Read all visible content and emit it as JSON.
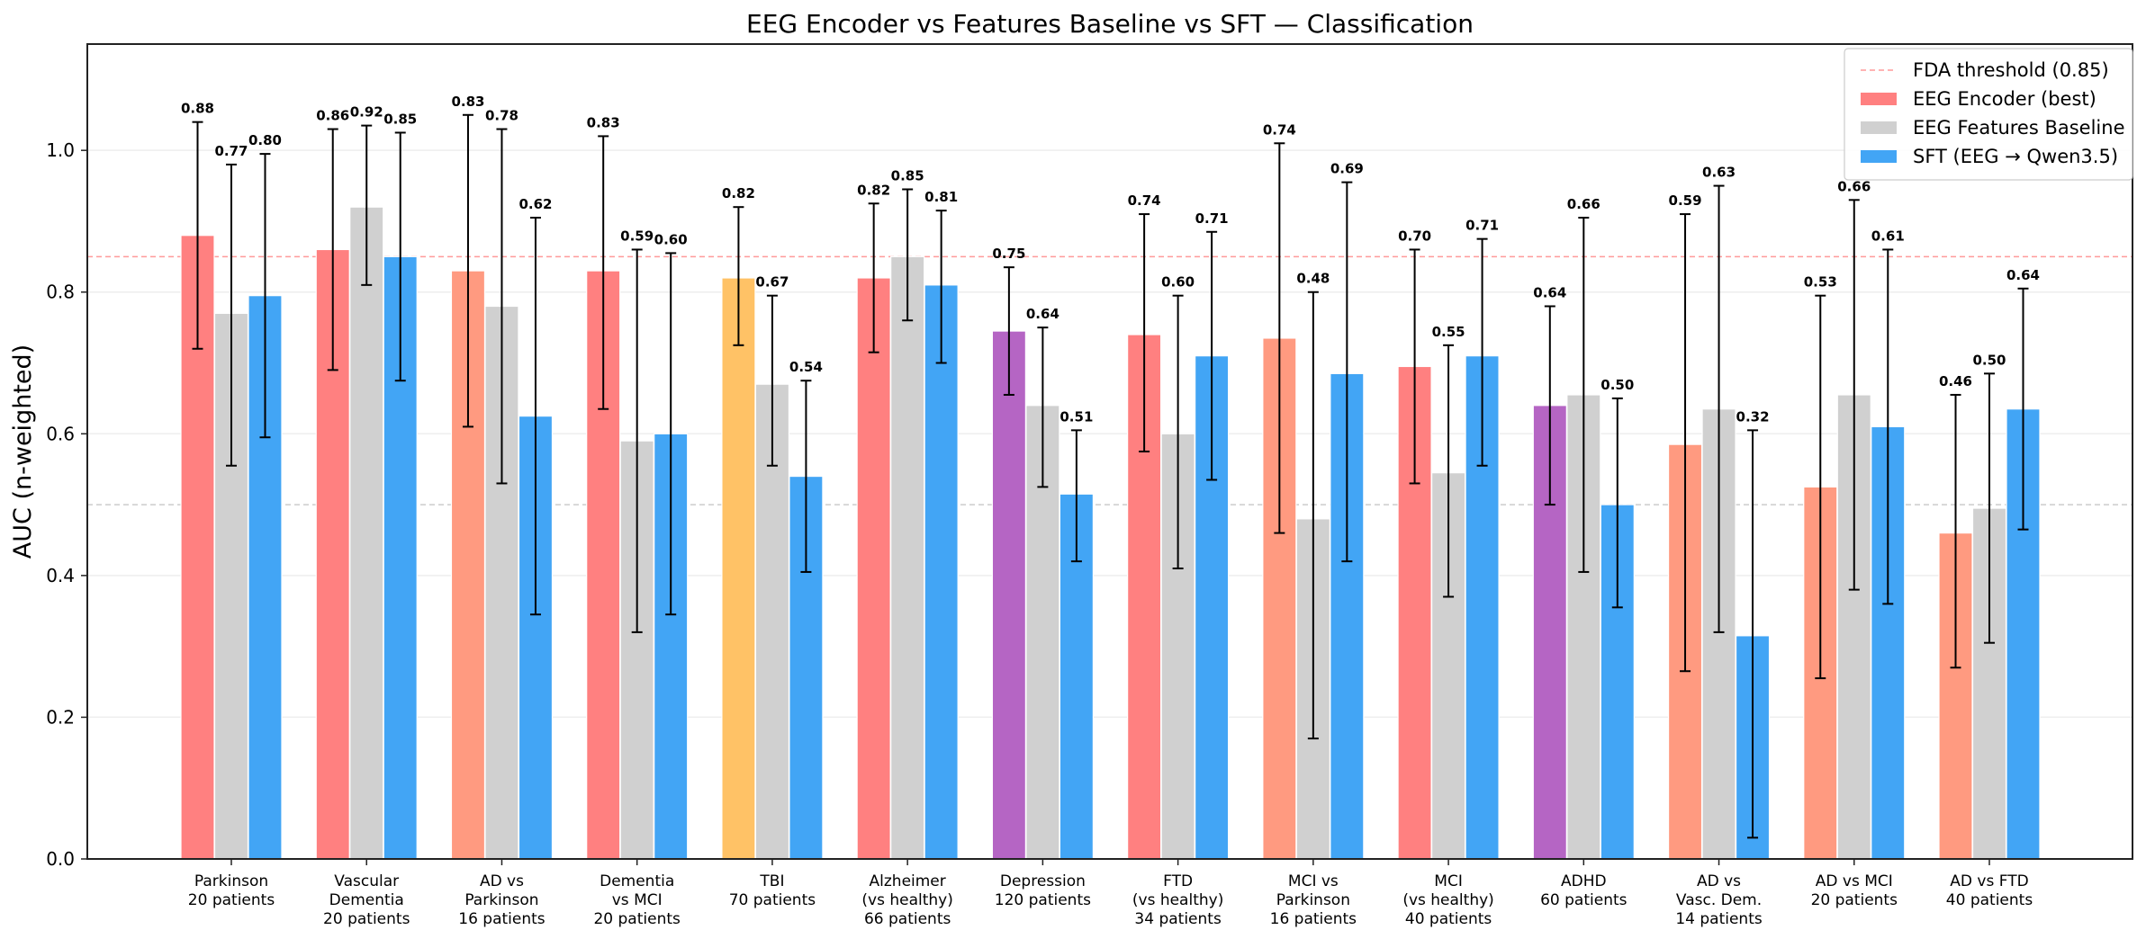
{
  "chart_data": {
    "type": "bar",
    "title": "EEG Encoder vs Features Baseline vs SFT — Classification",
    "xlabel": "",
    "ylabel": "AUC (n-weighted)",
    "ylim": [
      0.0,
      1.15
    ],
    "yticks": [
      "0.0",
      "0.2",
      "0.4",
      "0.6",
      "0.8",
      "1.0"
    ],
    "ytick_values": [
      0.0,
      0.2,
      0.4,
      0.6,
      0.8,
      1.0
    ],
    "grid": "y",
    "legend_position": "top-right",
    "reference_lines": [
      {
        "name": "FDA threshold (0.85)",
        "value": 0.85,
        "style": "dashed",
        "color": "#ff9a9a",
        "in_legend": true
      },
      {
        "name": "chance",
        "value": 0.5,
        "style": "dashed",
        "color": "#cccccc",
        "in_legend": false
      }
    ],
    "categories": [
      [
        "Parkinson",
        "20 patients"
      ],
      [
        "Vascular",
        "Dementia",
        "20 patients"
      ],
      [
        "AD vs",
        "Parkinson",
        "16 patients"
      ],
      [
        "Dementia",
        "vs MCI",
        "20 patients"
      ],
      [
        "TBI",
        "70 patients"
      ],
      [
        "Alzheimer",
        "(vs healthy)",
        "66 patients"
      ],
      [
        "Depression",
        "120 patients"
      ],
      [
        "FTD",
        "(vs healthy)",
        "34 patients"
      ],
      [
        "MCI vs",
        "Parkinson",
        "16 patients"
      ],
      [
        "MCI",
        "(vs healthy)",
        "40 patients"
      ],
      [
        "ADHD",
        "60 patients"
      ],
      [
        "AD vs",
        "Vasc. Dem.",
        "14 patients"
      ],
      [
        "AD vs MCI",
        "20 patients"
      ],
      [
        "AD vs FTD",
        "40 patients"
      ]
    ],
    "encoder_bar_colors": [
      "#ff8080",
      "#ff8080",
      "#ff9a80",
      "#ff8080",
      "#ffc266",
      "#ff8080",
      "#b565c4",
      "#ff8080",
      "#ff9a80",
      "#ff8080",
      "#b565c4",
      "#ff9a80",
      "#ff9a80",
      "#ff9a80"
    ],
    "series": [
      {
        "name": "EEG Encoder (best)",
        "color": "#ff8080",
        "values": [
          0.88,
          0.86,
          0.83,
          0.83,
          0.82,
          0.82,
          0.745,
          0.74,
          0.735,
          0.695,
          0.64,
          0.585,
          0.525,
          0.46
        ],
        "labels": [
          "0.88",
          "0.86",
          "0.83",
          "0.83",
          "0.82",
          "0.82",
          "0.75",
          "0.74",
          "0.74",
          "0.70",
          "0.64",
          "0.59",
          "0.53",
          "0.46"
        ],
        "ci_low": [
          0.72,
          0.69,
          0.61,
          0.635,
          0.725,
          0.715,
          0.655,
          0.575,
          0.46,
          0.53,
          0.5,
          0.265,
          0.255,
          0.27
        ],
        "ci_high": [
          1.04,
          1.03,
          1.05,
          1.02,
          0.92,
          0.925,
          0.835,
          0.91,
          1.01,
          0.86,
          0.78,
          0.91,
          0.795,
          0.655
        ]
      },
      {
        "name": "EEG Features Baseline",
        "color": "#d0d0d0",
        "values": [
          0.77,
          0.92,
          0.78,
          0.59,
          0.67,
          0.85,
          0.64,
          0.6,
          0.48,
          0.545,
          0.655,
          0.635,
          0.655,
          0.495
        ],
        "labels": [
          "0.77",
          "0.92",
          "0.78",
          "0.59",
          "0.67",
          "0.85",
          "0.64",
          "0.60",
          "0.48",
          "0.55",
          "0.66",
          "0.63",
          "0.66",
          "0.50"
        ],
        "ci_low": [
          0.555,
          0.81,
          0.53,
          0.32,
          0.555,
          0.76,
          0.525,
          0.41,
          0.17,
          0.37,
          0.405,
          0.32,
          0.38,
          0.305
        ],
        "ci_high": [
          0.98,
          1.035,
          1.03,
          0.86,
          0.795,
          0.945,
          0.75,
          0.795,
          0.8,
          0.725,
          0.905,
          0.95,
          0.93,
          0.685
        ]
      },
      {
        "name": "SFT (EEG → Qwen3.5)",
        "color": "#42a5f5",
        "values": [
          0.795,
          0.85,
          0.625,
          0.6,
          0.54,
          0.81,
          0.515,
          0.71,
          0.685,
          0.71,
          0.5,
          0.315,
          0.61,
          0.635
        ],
        "labels": [
          "0.80",
          "0.85",
          "0.62",
          "0.60",
          "0.54",
          "0.81",
          "0.51",
          "0.71",
          "0.69",
          "0.71",
          "0.50",
          "0.32",
          "0.61",
          "0.64"
        ],
        "ci_low": [
          0.595,
          0.675,
          0.345,
          0.345,
          0.405,
          0.7,
          0.42,
          0.535,
          0.42,
          0.555,
          0.355,
          0.03,
          0.36,
          0.465
        ],
        "ci_high": [
          0.995,
          1.025,
          0.905,
          0.855,
          0.675,
          0.915,
          0.605,
          0.885,
          0.955,
          0.875,
          0.65,
          0.605,
          0.86,
          0.805
        ]
      }
    ],
    "legend": [
      {
        "label": "FDA threshold (0.85)",
        "kind": "line",
        "color": "#ff9a9a"
      },
      {
        "label": "EEG Encoder (best)",
        "kind": "patch",
        "color": "#ff8080"
      },
      {
        "label": "EEG Features Baseline",
        "kind": "patch",
        "color": "#d0d0d0"
      },
      {
        "label": "SFT (EEG → Qwen3.5)",
        "kind": "patch",
        "color": "#42a5f5"
      }
    ]
  }
}
